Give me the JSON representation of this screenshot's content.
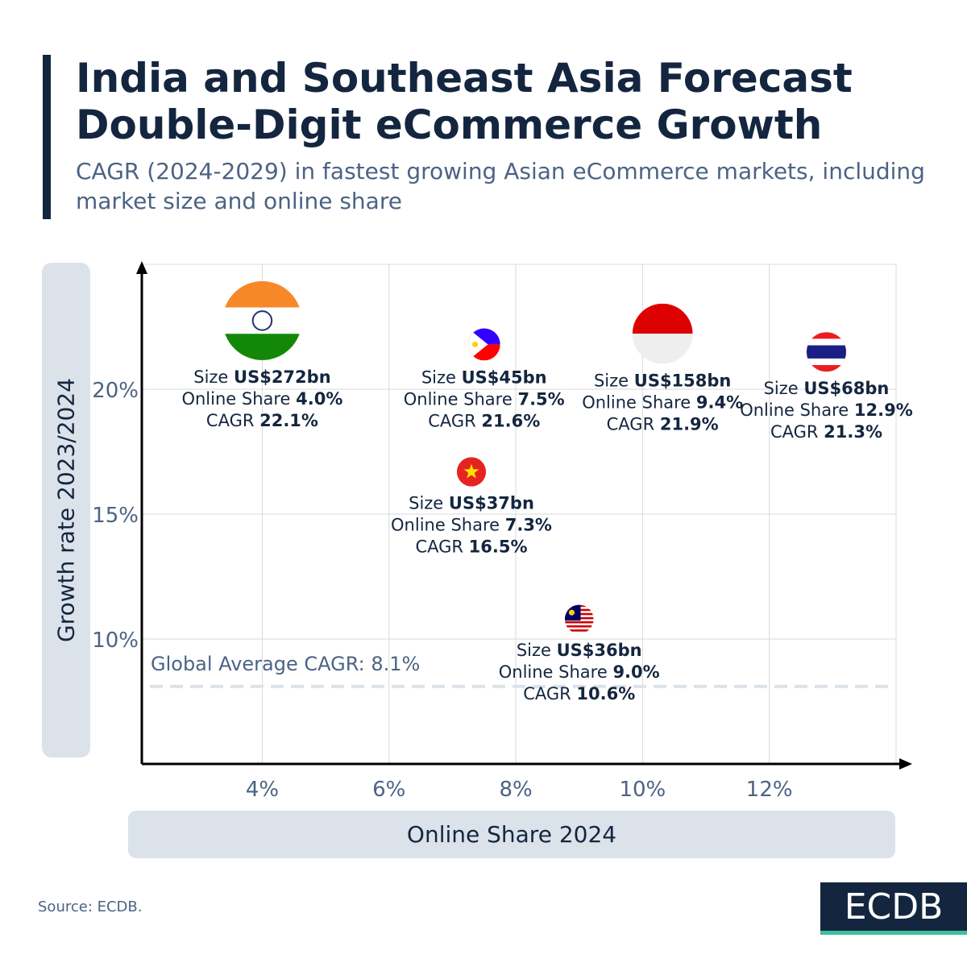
{
  "header": {
    "title": "India and Southeast Asia Forecast Double-Digit eCommerce Growth",
    "subtitle": "CAGR (2024-2029) in fastest growing Asian eCommerce markets, including market size and online share"
  },
  "footer": {
    "source": "Source: ECDB.",
    "logo": "ECDB"
  },
  "colors": {
    "navy": "#14263f",
    "muted": "#4c6384",
    "panel": "#dbe2ea",
    "grid": "#d9d9d9",
    "avg_line": "#dbe2ea",
    "logo_accent": "#3fbf9a"
  },
  "chart_data": {
    "type": "scatter",
    "xlabel": "Online Share 2024",
    "ylabel": "Growth rate 2023/2024",
    "xlim": [
      2.1,
      14.0
    ],
    "ylim": [
      5,
      25
    ],
    "x_ticks": [
      {
        "value": 4,
        "label": "4%"
      },
      {
        "value": 6,
        "label": "6%"
      },
      {
        "value": 8,
        "label": "8%"
      },
      {
        "value": 10,
        "label": "10%"
      },
      {
        "value": 12,
        "label": "12%"
      }
    ],
    "y_ticks": [
      {
        "value": 10,
        "label": "10%"
      },
      {
        "value": 15,
        "label": "15%"
      },
      {
        "value": 20,
        "label": "20%"
      }
    ],
    "grid": true,
    "bubble_size_unit": "US$ bn",
    "points": [
      {
        "flag": "india-flag-icon",
        "size": 272,
        "size_label": "US$272bn",
        "x": 4.0,
        "x_label": "4.0%",
        "y": 22.1,
        "y_label": "22.1%"
      },
      {
        "flag": "philippines-flag-icon",
        "size": 45,
        "size_label": "US$45bn",
        "x": 7.5,
        "x_label": "7.5%",
        "y": 21.6,
        "y_label": "21.6%"
      },
      {
        "flag": "indonesia-flag-icon",
        "size": 158,
        "size_label": "US$158bn",
        "x": 9.4,
        "x_label": "9.4%",
        "y": 21.9,
        "y_label": "21.9%"
      },
      {
        "flag": "thailand-flag-icon",
        "size": 68,
        "size_label": "US$68bn",
        "x": 12.9,
        "x_label": "12.9%",
        "y": 21.3,
        "y_label": "21.3%"
      },
      {
        "flag": "vietnam-flag-icon",
        "size": 37,
        "size_label": "US$37bn",
        "x": 7.3,
        "x_label": "7.3%",
        "y": 16.5,
        "y_label": "16.5%"
      },
      {
        "flag": "malaysia-flag-icon",
        "size": 36,
        "size_label": "US$36bn",
        "x": 9.0,
        "x_label": "9.0%",
        "y": 10.6,
        "y_label": "10.6%"
      }
    ],
    "label_prefixes": {
      "size": "Size ",
      "share": "Online Share ",
      "cagr": "CAGR "
    },
    "reference_line": {
      "y": 8.1,
      "label": "Global Average CAGR: 8.1%"
    }
  }
}
